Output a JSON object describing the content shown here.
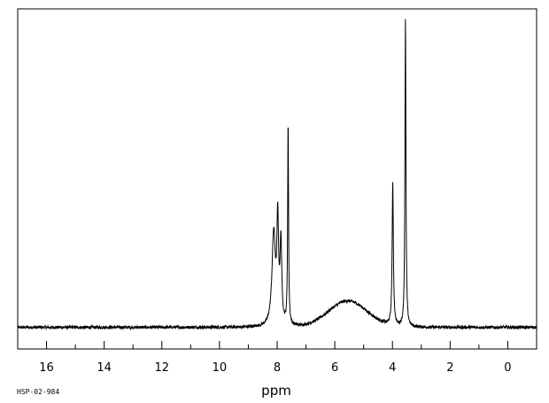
{
  "chart_data": {
    "type": "line",
    "title": "",
    "xlabel": "ppm",
    "ylabel": "",
    "xlim": [
      17,
      -1
    ],
    "ylim": [
      -0.07,
      1.03
    ],
    "x_reversed": true,
    "grid": false,
    "x_ticks": [
      16,
      14,
      12,
      10,
      8,
      6,
      4,
      2,
      0
    ],
    "baseline_noise": 0.005,
    "hump": {
      "center": 5.55,
      "width": 0.95,
      "height": 0.085
    },
    "peaks": [
      {
        "ppm": 8.12,
        "height": 0.3,
        "width": 0.07
      },
      {
        "ppm": 7.98,
        "height": 0.32,
        "width": 0.035
      },
      {
        "ppm": 7.87,
        "height": 0.26,
        "width": 0.035
      },
      {
        "ppm": 7.62,
        "height": 0.66,
        "width": 0.018
      },
      {
        "ppm": 3.99,
        "height": 0.46,
        "width": 0.025
      },
      {
        "ppm": 3.55,
        "height": 1.0,
        "width": 0.02
      }
    ],
    "series": [
      {
        "values_description": ""
      }
    ]
  },
  "footer": {
    "code": "HSP-02-984"
  }
}
